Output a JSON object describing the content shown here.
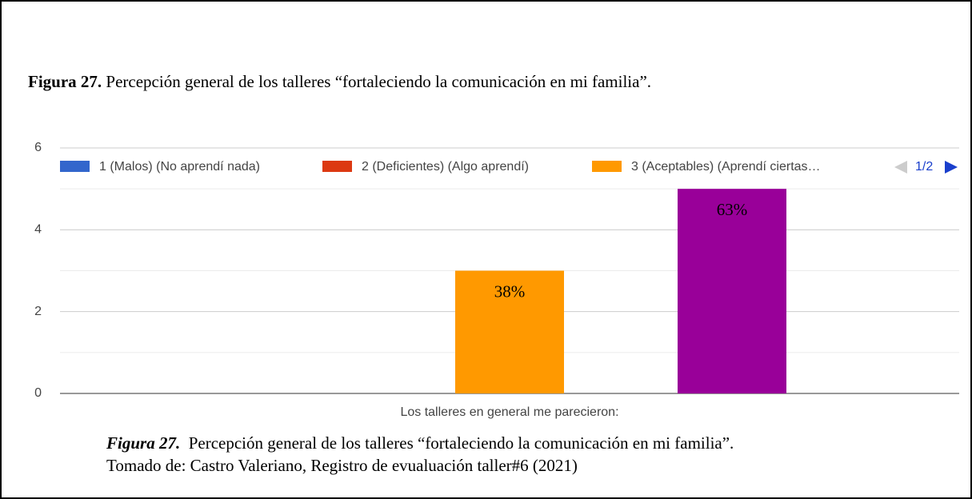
{
  "header": {
    "label": "Figura 27.",
    "title": "Percepción general de los talleres “fortaleciendo la comunicación en mi familia”."
  },
  "chart_data": {
    "type": "bar",
    "categories": [
      "Los talleres en general me parecieron:"
    ],
    "series": [
      {
        "name": "1 (Malos) (No aprendí nada)",
        "color": "#3366cc",
        "values": [
          0
        ]
      },
      {
        "name": "2 (Deficientes) (Algo aprendí)",
        "color": "#dc3912",
        "values": [
          0
        ]
      },
      {
        "name": "3 (Aceptables) (Aprendí ciertas…",
        "color": "#ff9900",
        "values": [
          3
        ],
        "value_labels": [
          "38%"
        ]
      },
      {
        "color": "#990099",
        "values": [
          5
        ],
        "value_labels": [
          "63%"
        ]
      },
      {
        "color": "#109618",
        "values": [
          0
        ]
      }
    ],
    "ylim": [
      0,
      6
    ],
    "yticks": [
      0,
      2,
      4,
      6
    ],
    "grid": true,
    "legend": "top",
    "legend_page": "1/2"
  },
  "caption": {
    "label": "Figura 27.",
    "text": "Percepción general de los talleres “fortaleciendo la comunicación en mi familia”.",
    "source": "Tomado de: Castro Valeriano, Registro de evualuación taller#6 (2021)"
  }
}
